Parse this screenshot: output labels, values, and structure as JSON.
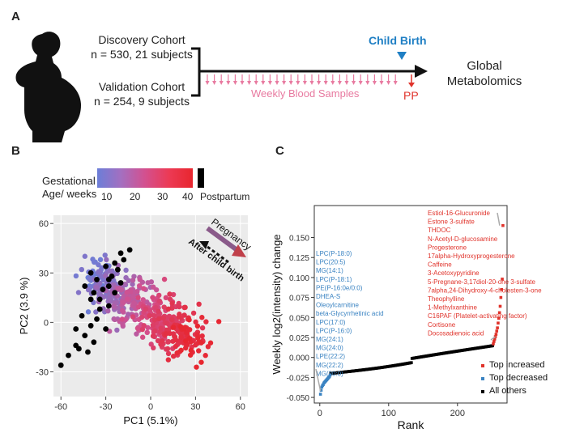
{
  "panelA": {
    "letter": "A",
    "discovery": {
      "title": "Discovery Cohort",
      "n": "n = 530, 21 subjects"
    },
    "validation": {
      "title": "Validation Cohort",
      "n": "n = 254, 9 subjects"
    },
    "child_birth": "Child Birth",
    "weekly": "Weekly Blood Samples",
    "pp": "PP",
    "global": "Global Metabolomics",
    "colors": {
      "timeline": "#111111",
      "pink": "#e87aa0",
      "blue": "#1f7fc4",
      "red": "#e0332b"
    }
  },
  "panelB": {
    "letter": "B",
    "legend_title_line1": "Gestational",
    "legend_title_line2": "Age/ weeks",
    "legend_ticks": [
      "10",
      "20",
      "30",
      "40"
    ],
    "postpartum": "Postpartum",
    "pregnancy": "Pregnancy",
    "after_birth": "After child birth",
    "colors": {
      "low": "#6b7ed8",
      "mid": "#d3508f",
      "high": "#e8262e",
      "postpartum": "#000000",
      "panel_bg": "#ebebeb"
    }
  },
  "panelC": {
    "letter": "C",
    "decreased_labels": [
      "LPC(P-18:0)",
      "LPC(20:5)",
      "MG(14:1)",
      "LPC(P-18:1)",
      "PE(P-16:0e/0:0)",
      "DHEA-S",
      "Oleoylcarnitine",
      "beta-Glycyrrhetinic acid",
      "LPC(17:0)",
      "LPC(P-16:0)",
      "MG(24:1)",
      "MG(24:0)",
      "LPE(22:2)",
      "MG(22:2)",
      "MG(20:0)"
    ],
    "increased_labels": [
      "Estiol-16-Glucuronide",
      "Estone 3-sulfate",
      "THDOC",
      "N-Acetyl-D-glucosamine",
      "Progesterone",
      "17alpha-Hydroxyprogesterone",
      "Caffeine",
      "3-Acetoxypyridine",
      "5-Pregnane-3,17diol-20-one 3-sulfate",
      "7alpha,24-Dihydroxy-4-cholesten-3-one",
      "Theophylline",
      "1-Methylxanthine",
      "C16PAF (Platelet-activating factor)",
      "Cortisone",
      "Docosadienoic acid"
    ],
    "legend": [
      "Top increased",
      "Top decreased",
      "All others"
    ],
    "colors": {
      "increased": "#e0332b",
      "decreased": "#3a83c2",
      "others": "#000000",
      "panel_bg": "#ffffff"
    }
  },
  "chart_data": [
    {
      "type": "scatter",
      "xlabel": "PC1 (5.1%)",
      "ylabel": "PC2 (3.9 %)",
      "xlim": [
        -65,
        65
      ],
      "ylim": [
        -45,
        65
      ],
      "x_ticks": [
        -60,
        -30,
        0,
        30,
        60
      ],
      "y_ticks": [
        -30,
        0,
        30,
        60
      ],
      "grid": true,
      "series": [
        {
          "name": "Postpartum",
          "points": [
            [
              -60,
              -26
            ],
            [
              -55,
              -20
            ],
            [
              -50,
              -14
            ],
            [
              -48,
              -16
            ],
            [
              -42,
              -18
            ],
            [
              -38,
              -12
            ],
            [
              -44,
              -8
            ],
            [
              -40,
              -2
            ],
            [
              -36,
              2
            ],
            [
              -30,
              -4
            ],
            [
              -34,
              8
            ],
            [
              -28,
              10
            ],
            [
              -40,
              14
            ],
            [
              -38,
              18
            ],
            [
              -32,
              20
            ],
            [
              -28,
              22
            ],
            [
              -44,
              22
            ],
            [
              -36,
              26
            ],
            [
              -40,
              30
            ],
            [
              -26,
              28
            ],
            [
              -22,
              32
            ],
            [
              -30,
              34
            ],
            [
              -24,
              36
            ],
            [
              -18,
              38
            ],
            [
              -20,
              42
            ],
            [
              -14,
              44
            ],
            [
              -28,
              26
            ],
            [
              -34,
              14
            ],
            [
              -46,
              4
            ],
            [
              -24,
              18
            ],
            [
              -20,
              24
            ],
            [
              -50,
              -4
            ]
          ]
        }
      ]
    },
    {
      "type": "scatter",
      "xlabel": "Rank",
      "ylabel": "Weekly log2(intensity) change",
      "xlim": [
        -8,
        272
      ],
      "ylim": [
        -0.057,
        0.19
      ],
      "x_ticks": [
        0,
        100,
        200
      ],
      "y_ticks": [
        -0.05,
        -0.025,
        0.0,
        0.025,
        0.05,
        0.075,
        0.1,
        0.125,
        0.15
      ],
      "series": [
        {
          "name": "Top increased",
          "points": [
            [
              252,
              0.017
            ],
            [
              253,
              0.02
            ],
            [
              254,
              0.023
            ],
            [
              255,
              0.026
            ],
            [
              256,
              0.029
            ],
            [
              257,
              0.033
            ],
            [
              258,
              0.037
            ],
            [
              259,
              0.043
            ],
            [
              260,
              0.049
            ],
            [
              261,
              0.056
            ],
            [
              262,
              0.064
            ],
            [
              263,
              0.075
            ],
            [
              264,
              0.085
            ],
            [
              265,
              0.098
            ],
            [
              266,
              0.165
            ]
          ]
        },
        {
          "name": "Top decreased",
          "points": [
            [
              1,
              -0.046
            ],
            [
              2,
              -0.041
            ],
            [
              3,
              -0.037
            ],
            [
              4,
              -0.035
            ],
            [
              5,
              -0.034
            ],
            [
              6,
              -0.032
            ],
            [
              7,
              -0.031
            ],
            [
              8,
              -0.03
            ],
            [
              9,
              -0.029
            ],
            [
              10,
              -0.028
            ],
            [
              11,
              -0.027
            ],
            [
              12,
              -0.026
            ],
            [
              13,
              -0.025
            ],
            [
              14,
              -0.024
            ],
            [
              15,
              -0.022
            ]
          ]
        },
        {
          "name": "All others"
        }
      ]
    }
  ]
}
